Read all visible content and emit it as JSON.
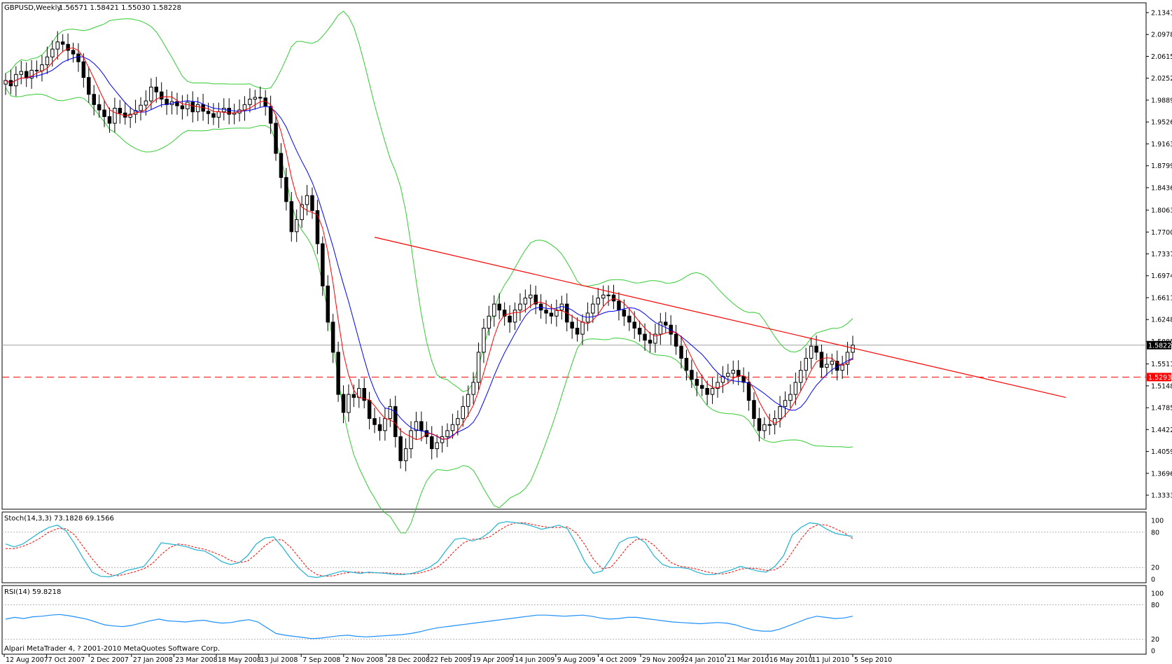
{
  "colors": {
    "background": "#ffffff",
    "frame": "#000000",
    "bollinger": "#33cc33",
    "ma_fast": "#ff0000",
    "ma_slow": "#0000ff",
    "trendline": "#ff0000",
    "support": "#ff0000",
    "stoch_main": "#20b2d0",
    "stoch_signal": "#ff0000",
    "rsi": "#1e90ff",
    "price_box_current": "#000000",
    "price_box_level": "#ff0000"
  },
  "chart_data": [
    {
      "type": "candlestick",
      "title": "GBPUSD,Weekly",
      "ohlc_header": "1.56571 1.58421 1.55030 1.58228",
      "ylim": [
        1.3333,
        2.1341
      ],
      "y_ticks": [
        "2.13410",
        "2.09780",
        "2.06150",
        "2.02520",
        "1.98890",
        "1.95260",
        "1.91630",
        "1.87990",
        "1.84360",
        "1.80630",
        "1.77000",
        "1.73370",
        "1.69740",
        "1.66110",
        "1.62480",
        "1.58850",
        "1.55110",
        "1.51480",
        "1.47850",
        "1.44220",
        "1.40590",
        "1.36960",
        "1.33330"
      ],
      "current_price_label": "1.58228",
      "current_price": 1.58228,
      "support_label": "1.52930",
      "support_level": 1.5293,
      "x_labels": [
        "12 Aug 2007",
        "7 Oct 2007",
        "2 Dec 2007",
        "27 Jan 2008",
        "23 Mar 2008",
        "18 May 2008",
        "13 Jul 2008",
        "7 Sep 2008",
        "2 Nov 2008",
        "28 Dec 2008",
        "22 Feb 2009",
        "19 Apr 2009",
        "14 Jun 2009",
        "9 Aug 2009",
        "4 Oct 2009",
        "29 Nov 2009",
        "24 Jan 2010",
        "21 Mar 2010",
        "16 May 2010",
        "11 Jul 2010",
        "5 Sep 2010"
      ],
      "trendline": {
        "x": [
          "7 Jan 2009",
          "22 Mar 2011"
        ],
        "y": [
          1.7613,
          1.4955
        ]
      },
      "close_series": [
        2.0215,
        2.0125,
        2.0315,
        2.0365,
        2.0255,
        2.0385,
        2.0375,
        2.0475,
        2.0605,
        2.0735,
        2.0855,
        2.0815,
        2.0715,
        2.0655,
        2.0525,
        2.0265,
        1.9985,
        1.9815,
        1.9725,
        1.9615,
        1.9505,
        1.9755,
        1.9675,
        1.9605,
        1.9655,
        1.9715,
        1.9805,
        1.9875,
        2.0105,
        2.0025,
        1.9905,
        1.9815,
        1.9865,
        1.9795,
        1.9745,
        1.9855,
        1.9695,
        1.9815,
        1.9705,
        1.9665,
        1.9605,
        1.9695,
        1.9755,
        1.9655,
        1.9675,
        1.9725,
        1.9815,
        1.9905,
        1.9935,
        1.9925,
        1.9785,
        1.9505,
        1.9005,
        1.8605,
        1.8205,
        1.7705,
        1.7905,
        1.8155,
        1.8305,
        1.8055,
        1.7505,
        1.6805,
        1.6205,
        1.5705,
        1.5005,
        1.4705,
        1.5005,
        1.4955,
        1.5105,
        1.4905,
        1.4605,
        1.4505,
        1.4405,
        1.4605,
        1.4805,
        1.4305,
        1.3905,
        1.4105,
        1.4405,
        1.4555,
        1.4405,
        1.4305,
        1.4105,
        1.4205,
        1.4305,
        1.4405,
        1.4505,
        1.4605,
        1.4805,
        1.5005,
        1.5205,
        1.5705,
        1.6105,
        1.6305,
        1.6505,
        1.6405,
        1.6305,
        1.6205,
        1.6405,
        1.6505,
        1.6605,
        1.6655,
        1.6505,
        1.6405,
        1.6355,
        1.6305,
        1.6405,
        1.6505,
        1.6205,
        1.6105,
        1.6005,
        1.6205,
        1.6355,
        1.6505,
        1.6605,
        1.6655,
        1.6655,
        1.6555,
        1.6405,
        1.6305,
        1.6205,
        1.6105,
        1.6005,
        1.5905,
        1.5855,
        1.6005,
        1.6205,
        1.6155,
        1.6005,
        1.5805,
        1.5605,
        1.5405,
        1.5255,
        1.5155,
        1.5105,
        1.5005,
        1.5105,
        1.5205,
        1.5305,
        1.5355,
        1.5405,
        1.5305,
        1.5205,
        1.4905,
        1.4605,
        1.4405,
        1.4505,
        1.4505,
        1.4605,
        1.4805,
        1.4905,
        1.5005,
        1.5205,
        1.5405,
        1.5605,
        1.5805,
        1.5705,
        1.5455,
        1.5505,
        1.5555,
        1.5405,
        1.5505,
        1.5705,
        1.5823
      ]
    },
    {
      "type": "line",
      "title": "Stoch(14,3,3) 73.1828 69.1566",
      "ylim": [
        0,
        100
      ],
      "y_ticks": [
        "100",
        "80",
        "20",
        "0"
      ],
      "levels": [
        80,
        20
      ],
      "series": [
        {
          "name": "main",
          "values": [
            60,
            55,
            60,
            70,
            80,
            88,
            92,
            82,
            60,
            35,
            12,
            5,
            4,
            8,
            15,
            18,
            22,
            40,
            62,
            60,
            58,
            55,
            50,
            48,
            40,
            30,
            25,
            28,
            40,
            60,
            70,
            72,
            55,
            35,
            18,
            5,
            3,
            6,
            10,
            14,
            12,
            10,
            12,
            11,
            10,
            8,
            8,
            10,
            14,
            20,
            30,
            50,
            68,
            70,
            65,
            70,
            80,
            95,
            98,
            96,
            94,
            90,
            85,
            88,
            92,
            86,
            60,
            30,
            10,
            14,
            35,
            62,
            70,
            72,
            62,
            40,
            25,
            20,
            20,
            18,
            12,
            8,
            8,
            12,
            16,
            22,
            18,
            14,
            12,
            22,
            40,
            75,
            88,
            96,
            94,
            85,
            78,
            75,
            73
          ]
        },
        {
          "name": "signal",
          "values": [
            52,
            52,
            56,
            62,
            70,
            80,
            86,
            86,
            75,
            55,
            35,
            18,
            8,
            6,
            9,
            13,
            18,
            27,
            42,
            54,
            60,
            58,
            54,
            51,
            46,
            40,
            32,
            28,
            31,
            43,
            57,
            67,
            67,
            54,
            36,
            18,
            8,
            5,
            6,
            10,
            12,
            12,
            11,
            11,
            11,
            10,
            9,
            9,
            11,
            15,
            21,
            33,
            49,
            62,
            68,
            68,
            72,
            82,
            91,
            96,
            96,
            93,
            90,
            88,
            88,
            89,
            79,
            59,
            34,
            18,
            20,
            37,
            56,
            68,
            68,
            58,
            42,
            28,
            22,
            20,
            17,
            13,
            10,
            9,
            12,
            17,
            19,
            18,
            15,
            16,
            25,
            46,
            68,
            86,
            93,
            92,
            86,
            79,
            69
          ]
        }
      ]
    },
    {
      "type": "line",
      "title": "RSI(14) 59.8218",
      "ylim": [
        0,
        100
      ],
      "y_ticks": [
        "100",
        "80",
        "20",
        "0"
      ],
      "levels": [
        80,
        20
      ],
      "series": [
        {
          "name": "RSI(14)",
          "values": [
            55,
            58,
            56,
            59,
            60,
            62,
            63,
            61,
            58,
            55,
            50,
            45,
            43,
            42,
            44,
            48,
            52,
            55,
            52,
            51,
            50,
            52,
            53,
            50,
            48,
            49,
            52,
            54,
            50,
            40,
            30,
            27,
            25,
            23,
            21,
            22,
            24,
            26,
            27,
            25,
            24,
            25,
            26,
            27,
            28,
            30,
            33,
            37,
            40,
            42,
            44,
            46,
            48,
            50,
            52,
            54,
            56,
            58,
            60,
            62,
            62,
            61,
            60,
            61,
            62,
            60,
            57,
            55,
            56,
            58,
            58,
            56,
            54,
            52,
            50,
            49,
            48,
            47,
            48,
            49,
            48,
            45,
            40,
            36,
            34,
            34,
            38,
            44,
            50,
            56,
            60,
            58,
            56,
            57,
            60
          ]
        }
      ]
    }
  ],
  "footer": {
    "copyright": "Alpari MetaTrader 4, ? 2001-2010 MetaQuotes Software Corp."
  }
}
